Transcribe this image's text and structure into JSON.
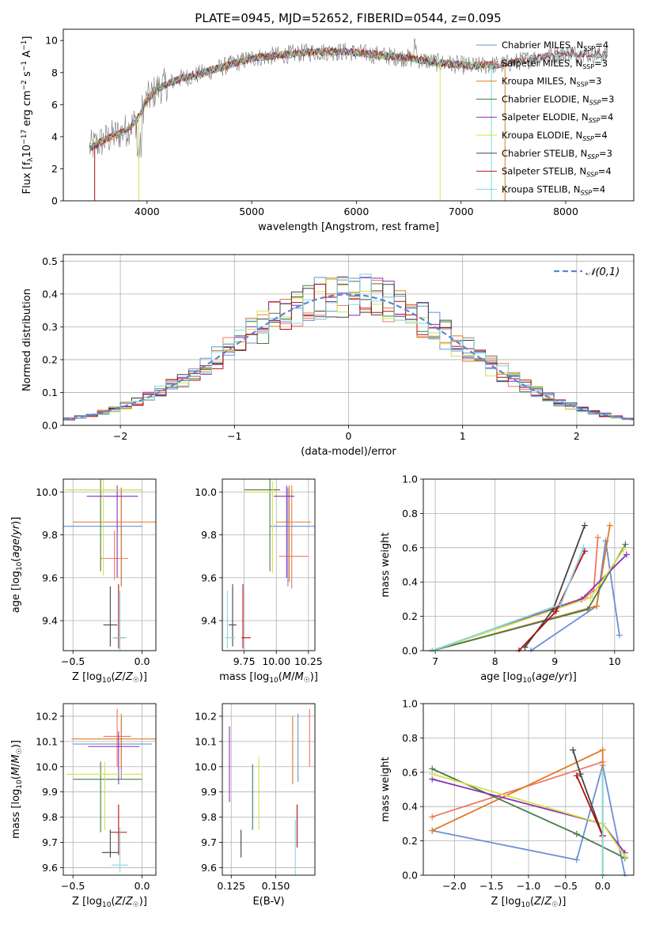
{
  "title": "PLATE=0945, MJD=52652, FIBERID=0544, z=0.095",
  "colors": {
    "Chabrier MILES": "#6a8fd8",
    "Salpeter MILES": "#f07860",
    "Kroupa MILES": "#e07b20",
    "Chabrier ELODIE": "#4a7a4a",
    "Salpeter ELODIE": "#8a2fb8",
    "Kroupa ELODIE": "#d4e34a",
    "Chabrier STELIB": "#444444",
    "Salpeter STELIB": "#b01010",
    "Kroupa STELIB": "#80d8e0"
  },
  "chart_data": [
    {
      "id": "spectrum",
      "type": "line",
      "xlabel": "wavelength [Angstrom, rest frame]",
      "ylabel": "Flux [f_λ10^-17 erg cm^-2 s^-1 A^-1]",
      "xlim": [
        3200,
        8650
      ],
      "ylim": [
        0,
        10.7
      ],
      "xticks": [
        4000,
        5000,
        6000,
        7000,
        8000
      ],
      "yticks": [
        0,
        2,
        4,
        6,
        8,
        10
      ],
      "grid": false,
      "legend_position": "top-right",
      "legend": [
        {
          "name": "Chabrier MILES",
          "nssp": "4"
        },
        {
          "name": "Salpeter MILES",
          "nssp": "3"
        },
        {
          "name": "Kroupa MILES",
          "nssp": "3"
        },
        {
          "name": "Chabrier ELODIE",
          "nssp": "3"
        },
        {
          "name": "Salpeter ELODIE",
          "nssp": "4"
        },
        {
          "name": "Kroupa ELODIE",
          "nssp": "4"
        },
        {
          "name": "Chabrier STELIB",
          "nssp": "3"
        },
        {
          "name": "Salpeter STELIB",
          "nssp": "4"
        },
        {
          "name": "Kroupa STELIB",
          "nssp": "4"
        }
      ],
      "continuum": {
        "x": [
          3450,
          3600,
          3800,
          3900,
          4000,
          4100,
          4300,
          4500,
          4700,
          5000,
          5300,
          5600,
          5900,
          6200,
          6500,
          6800,
          7100,
          7400,
          7700,
          8000,
          8400
        ],
        "y": [
          3.3,
          3.8,
          4.4,
          5.0,
          6.3,
          7.0,
          7.6,
          7.9,
          8.3,
          8.9,
          9.1,
          9.3,
          9.3,
          9.1,
          8.9,
          8.6,
          8.4,
          8.5,
          8.9,
          9.2,
          9.1
        ]
      }
    },
    {
      "id": "residuals",
      "type": "histogram",
      "xlabel": "(data-model)/error",
      "ylabel": "Normed distribution",
      "xlim": [
        -2.5,
        2.5
      ],
      "ylim": [
        0,
        0.52
      ],
      "xticks": [
        -2,
        -1,
        0,
        1,
        2
      ],
      "yticks": [
        0.0,
        0.1,
        0.2,
        0.3,
        0.4,
        0.5
      ],
      "grid": true,
      "legend_position": "top-right",
      "reference": {
        "label": "𝒩(0,1)",
        "mean": 0,
        "sigma": 1
      },
      "bins": {
        "start": -2.5,
        "width": 0.1,
        "count": 50
      }
    },
    {
      "id": "age_vs_z",
      "type": "errorbar",
      "xlabel": "Z [log10(Z/Z☉)]",
      "ylabel": "age [log10(age/yr)]",
      "xlim": [
        -0.57,
        0.1
      ],
      "ylim": [
        9.26,
        10.06
      ],
      "xticks": [
        -0.5,
        0.0
      ],
      "yticks": [
        9.4,
        9.6,
        9.8,
        10.0
      ],
      "points": [
        {
          "model": "Chabrier MILES",
          "x": -0.15,
          "xerr": [
            0.45,
            0.15
          ],
          "y": 9.84,
          "yerr": [
            0.28,
            0.18
          ]
        },
        {
          "model": "Salpeter MILES",
          "x": -0.2,
          "xerr": [
            0.1,
            0.1
          ],
          "y": 9.69,
          "yerr": [
            0.1,
            0.13
          ]
        },
        {
          "model": "Kroupa MILES",
          "x": -0.15,
          "xerr": [
            0.35,
            0.25
          ],
          "y": 9.86,
          "yerr": [
            0.3,
            0.16
          ]
        },
        {
          "model": "Chabrier ELODIE",
          "x": -0.3,
          "xerr": [
            0.25,
            0.3
          ],
          "y": 10.01,
          "yerr": [
            0.38,
            0.05
          ]
        },
        {
          "model": "Salpeter ELODIE",
          "x": -0.18,
          "xerr": [
            0.22,
            0.15
          ],
          "y": 9.98,
          "yerr": [
            0.38,
            0.05
          ]
        },
        {
          "model": "Kroupa ELODIE",
          "x": -0.28,
          "xerr": [
            0.28,
            0.28
          ],
          "y": 10.01,
          "yerr": [
            0.4,
            0.05
          ]
        },
        {
          "model": "Chabrier STELIB",
          "x": -0.23,
          "xerr": [
            0.05,
            0.05
          ],
          "y": 9.38,
          "yerr": [
            0.1,
            0.18
          ]
        },
        {
          "model": "Salpeter STELIB",
          "x": -0.17,
          "xerr": [
            0.04,
            0.04
          ],
          "y": 9.32,
          "yerr": [
            0.05,
            0.25
          ]
        },
        {
          "model": "Kroupa STELIB",
          "x": -0.16,
          "xerr": [
            0.05,
            0.05
          ],
          "y": 9.32,
          "yerr": [
            0.1,
            0.22
          ]
        }
      ]
    },
    {
      "id": "age_vs_mass",
      "type": "errorbar",
      "xlabel": "mass [log10(M/M☉)]",
      "ylabel": "",
      "xlim": [
        9.58,
        10.3
      ],
      "ylim": [
        9.26,
        10.06
      ],
      "xticks": [
        9.75,
        10.0,
        10.25
      ],
      "yticks": [
        9.4,
        9.6,
        9.8,
        10.0
      ],
      "points": [
        {
          "model": "Chabrier MILES",
          "x": 10.09,
          "xerr": [
            0.14,
            0.21
          ],
          "y": 9.84,
          "yerr": [
            0.28,
            0.18
          ]
        },
        {
          "model": "Salpeter MILES",
          "x": 10.12,
          "xerr": [
            0.1,
            0.13
          ],
          "y": 9.7,
          "yerr": [
            0.15,
            0.33
          ]
        },
        {
          "model": "Kroupa MILES",
          "x": 10.1,
          "xerr": [
            0.1,
            0.17
          ],
          "y": 9.86,
          "yerr": [
            0.28,
            0.17
          ]
        },
        {
          "model": "Chabrier ELODIE",
          "x": 9.95,
          "xerr": [
            0.2,
            0.08
          ],
          "y": 10.01,
          "yerr": [
            0.38,
            0.05
          ]
        },
        {
          "model": "Salpeter ELODIE",
          "x": 10.08,
          "xerr": [
            0.1,
            0.06
          ],
          "y": 9.98,
          "yerr": [
            0.38,
            0.05
          ]
        },
        {
          "model": "Kroupa ELODIE",
          "x": 9.97,
          "xerr": [
            0.2,
            0.05
          ],
          "y": 10.0,
          "yerr": [
            0.38,
            0.05
          ]
        },
        {
          "model": "Chabrier STELIB",
          "x": 9.66,
          "xerr": [
            0.03,
            0.03
          ],
          "y": 9.38,
          "yerr": [
            0.1,
            0.19
          ]
        },
        {
          "model": "Salpeter STELIB",
          "x": 9.74,
          "xerr": [
            0.01,
            0.06
          ],
          "y": 9.32,
          "yerr": [
            0.05,
            0.25
          ]
        },
        {
          "model": "Kroupa STELIB",
          "x": 9.62,
          "xerr": [
            0.02,
            0.06
          ],
          "y": 9.32,
          "yerr": [
            0.05,
            0.22
          ]
        }
      ]
    },
    {
      "id": "weight_vs_age",
      "type": "line",
      "xlabel": "age [log10(age/yr)]",
      "ylabel": "mass weight",
      "xlim": [
        6.8,
        10.32
      ],
      "ylim": [
        0,
        1.0
      ],
      "xticks": [
        7,
        8,
        9,
        10
      ],
      "yticks": [
        0.0,
        0.2,
        0.4,
        0.6,
        0.8,
        1.0
      ],
      "grid": true,
      "series": [
        {
          "model": "Chabrier MILES",
          "x": [
            8.6,
            9.7,
            9.85,
            10.08
          ],
          "y": [
            0.0,
            0.26,
            0.64,
            0.09
          ]
        },
        {
          "model": "Salpeter MILES",
          "x": [
            6.95,
            9.5,
            9.65,
            9.72
          ],
          "y": [
            0.0,
            0.31,
            0.35,
            0.66
          ]
        },
        {
          "model": "Kroupa MILES",
          "x": [
            6.95,
            9.7,
            9.92
          ],
          "y": [
            0.0,
            0.26,
            0.73
          ]
        },
        {
          "model": "Chabrier ELODIE",
          "x": [
            6.95,
            9.55,
            10.18
          ],
          "y": [
            0.0,
            0.24,
            0.62
          ]
        },
        {
          "model": "Salpeter ELODIE",
          "x": [
            6.95,
            9.45,
            10.2
          ],
          "y": [
            0.0,
            0.3,
            0.56
          ]
        },
        {
          "model": "Kroupa ELODIE",
          "x": [
            6.95,
            9.6,
            10.15
          ],
          "y": [
            0.0,
            0.31,
            0.59
          ]
        },
        {
          "model": "Chabrier STELIB",
          "x": [
            8.5,
            8.97,
            9.5
          ],
          "y": [
            0.02,
            0.24,
            0.73
          ]
        },
        {
          "model": "Salpeter STELIB",
          "x": [
            8.4,
            9.02,
            9.5
          ],
          "y": [
            0.0,
            0.23,
            0.58
          ]
        },
        {
          "model": "Kroupa STELIB",
          "x": [
            6.95,
            9.1,
            9.48
          ],
          "y": [
            0.0,
            0.27,
            0.6
          ]
        }
      ]
    },
    {
      "id": "mass_vs_z",
      "type": "errorbar",
      "xlabel": "Z [log10(Z/Z☉)]",
      "ylabel": "mass [log10(M/M☉)]",
      "xlim": [
        -0.57,
        0.1
      ],
      "ylim": [
        9.57,
        10.25
      ],
      "xticks": [
        -0.5,
        0.0
      ],
      "yticks": [
        9.6,
        9.7,
        9.8,
        9.9,
        10.0,
        10.1,
        10.2
      ],
      "points": [
        {
          "model": "Chabrier MILES",
          "x": -0.15,
          "xerr": [
            0.35,
            0.22
          ],
          "y": 10.09,
          "yerr": [
            0.14,
            0.1
          ]
        },
        {
          "model": "Salpeter MILES",
          "x": -0.18,
          "xerr": [
            0.1,
            0.1
          ],
          "y": 10.12,
          "yerr": [
            0.12,
            0.11
          ]
        },
        {
          "model": "Kroupa MILES",
          "x": -0.15,
          "xerr": [
            0.36,
            0.25
          ],
          "y": 10.11,
          "yerr": [
            0.12,
            0.1
          ]
        },
        {
          "model": "Chabrier ELODIE",
          "x": -0.3,
          "xerr": [
            0.2,
            0.3
          ],
          "y": 9.95,
          "yerr": [
            0.21,
            0.07
          ]
        },
        {
          "model": "Salpeter ELODIE",
          "x": -0.17,
          "xerr": [
            0.22,
            0.15
          ],
          "y": 10.08,
          "yerr": [
            0.15,
            0.06
          ]
        },
        {
          "model": "Kroupa ELODIE",
          "x": -0.27,
          "xerr": [
            0.28,
            0.27
          ],
          "y": 9.97,
          "yerr": [
            0.22,
            0.05
          ]
        },
        {
          "model": "Chabrier STELIB",
          "x": -0.23,
          "xerr": [
            0.06,
            0.06
          ],
          "y": 9.66,
          "yerr": [
            0.02,
            0.09
          ]
        },
        {
          "model": "Salpeter STELIB",
          "x": -0.17,
          "xerr": [
            0.06,
            0.06
          ],
          "y": 9.74,
          "yerr": [
            0.09,
            0.11
          ]
        },
        {
          "model": "Kroupa STELIB",
          "x": -0.16,
          "xerr": [
            0.06,
            0.06
          ],
          "y": 9.61,
          "yerr": [
            0.03,
            0.15
          ]
        }
      ]
    },
    {
      "id": "mass_vs_ebv",
      "type": "errorbar",
      "xlabel": "E(B-V)",
      "ylabel": "",
      "xlim": [
        0.12,
        0.172
      ],
      "ylim": [
        9.57,
        10.25
      ],
      "xticks": [
        0.125,
        0.15
      ],
      "yticks": [
        9.6,
        9.7,
        9.8,
        9.9,
        10.0,
        10.1,
        10.2
      ],
      "points": [
        {
          "model": "Chabrier MILES",
          "x": 0.1625,
          "xerr": [
            0,
            0
          ],
          "y": 10.09,
          "yerr": [
            0.15,
            0.12
          ]
        },
        {
          "model": "Salpeter MILES",
          "x": 0.169,
          "xerr": [
            0,
            0
          ],
          "y": 10.11,
          "yerr": [
            0.11,
            0.12
          ]
        },
        {
          "model": "Kroupa MILES",
          "x": 0.1595,
          "xerr": [
            0,
            0
          ],
          "y": 10.11,
          "yerr": [
            0.18,
            0.09
          ]
        },
        {
          "model": "Chabrier ELODIE",
          "x": 0.137,
          "xerr": [
            0,
            0
          ],
          "y": 9.95,
          "yerr": [
            0.2,
            0.06
          ]
        },
        {
          "model": "Salpeter ELODIE",
          "x": 0.124,
          "xerr": [
            0,
            0
          ],
          "y": 10.06,
          "yerr": [
            0.2,
            0.1
          ]
        },
        {
          "model": "Kroupa ELODIE",
          "x": 0.1405,
          "xerr": [
            0,
            0
          ],
          "y": 9.95,
          "yerr": [
            0.2,
            0.09
          ]
        },
        {
          "model": "Chabrier STELIB",
          "x": 0.1305,
          "xerr": [
            0,
            0
          ],
          "y": 9.69,
          "yerr": [
            0.05,
            0.06
          ]
        },
        {
          "model": "Salpeter STELIB",
          "x": 0.162,
          "xerr": [
            0,
            0
          ],
          "y": 9.77,
          "yerr": [
            0.09,
            0.08
          ]
        },
        {
          "model": "Kroupa STELIB",
          "x": 0.161,
          "xerr": [
            0,
            0
          ],
          "y": 9.67,
          "yerr": [
            0.1,
            0.12
          ]
        }
      ]
    },
    {
      "id": "weight_vs_z",
      "type": "line",
      "xlabel": "Z [log10(Z/Z☉)]",
      "ylabel": "mass weight",
      "xlim": [
        -2.42,
        0.42
      ],
      "ylim": [
        0,
        1.0
      ],
      "xticks": [
        -2.0,
        -1.5,
        -1.0,
        -0.5,
        0.0
      ],
      "yticks": [
        0.0,
        0.2,
        0.4,
        0.6,
        0.8,
        1.0
      ],
      "grid": true,
      "series": [
        {
          "model": "Chabrier MILES",
          "x": [
            -2.3,
            -0.35,
            0.0,
            0.3
          ],
          "y": [
            0.26,
            0.09,
            0.64,
            0.0
          ]
        },
        {
          "model": "Salpeter MILES",
          "x": [
            -2.3,
            0.0
          ],
          "y": [
            0.34,
            0.66
          ]
        },
        {
          "model": "Kroupa MILES",
          "x": [
            -2.3,
            0.0,
            0.0
          ],
          "y": [
            0.26,
            0.73,
            0.0
          ]
        },
        {
          "model": "Chabrier ELODIE",
          "x": [
            -2.3,
            -0.35,
            0.3
          ],
          "y": [
            0.62,
            0.24,
            0.1
          ]
        },
        {
          "model": "Salpeter ELODIE",
          "x": [
            -2.3,
            0.0,
            0.3
          ],
          "y": [
            0.56,
            0.3,
            0.13
          ]
        },
        {
          "model": "Kroupa ELODIE",
          "x": [
            -2.3,
            0.0,
            0.3
          ],
          "y": [
            0.59,
            0.3,
            0.11
          ]
        },
        {
          "model": "Chabrier STELIB",
          "x": [
            -0.4,
            -0.3,
            0.0
          ],
          "y": [
            0.73,
            0.59,
            0.23
          ]
        },
        {
          "model": "Salpeter STELIB",
          "x": [
            -0.35,
            0.0,
            0.0
          ],
          "y": [
            0.58,
            0.23,
            0.23
          ]
        },
        {
          "model": "Kroupa STELIB",
          "x": [
            0.0,
            0.0
          ],
          "y": [
            0.6,
            0.0
          ]
        }
      ]
    }
  ]
}
